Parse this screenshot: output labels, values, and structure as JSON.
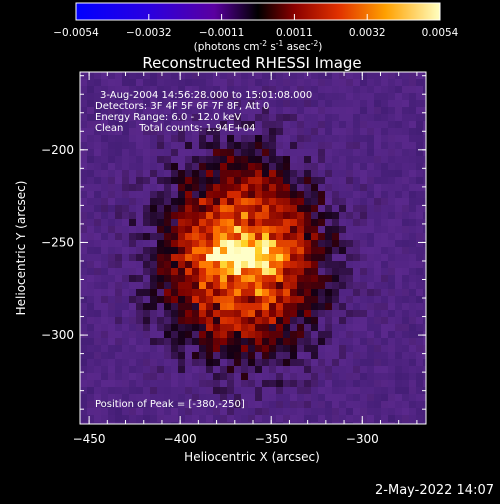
{
  "chart_data": {
    "type": "heatmap",
    "title": "Reconstructed RHESSI Image",
    "xlabel": "Heliocentric X (arcsec)",
    "ylabel": "Heliocentric Y (arcsec)",
    "xlim": [
      -455,
      -265
    ],
    "ylim": [
      -348,
      -158
    ],
    "x_ticks": [
      -450,
      -400,
      -350,
      -300
    ],
    "y_ticks": [
      -200,
      -250,
      -300
    ],
    "colorbar": {
      "min": -0.0054,
      "max": 0.0054,
      "ticks": [
        "-0.0054",
        "-0.0032",
        "-0.0011",
        "0.0011",
        "0.0032",
        "0.0054"
      ],
      "label_main": "(photons cm",
      "label_sup1": "-2",
      "label_mid1": " s",
      "label_sup2": "-1",
      "label_mid2": " asec",
      "label_sup3": "-2",
      "label_end": ")"
    },
    "peak": [
      -380,
      -250
    ],
    "annotations": [
      "3-Aug-2004 14:56:28.000 to 15:01:08.000",
      "Detectors: 3F 4F 5F 6F 7F 8F, Att 0",
      "Energy Range: 6.0 - 12.0 keV",
      "Clean     Total counts: 1.94E+04"
    ],
    "peak_label": "Position of Peak = [-380,-250]",
    "footer_date": "2-May-2022 14:07"
  }
}
